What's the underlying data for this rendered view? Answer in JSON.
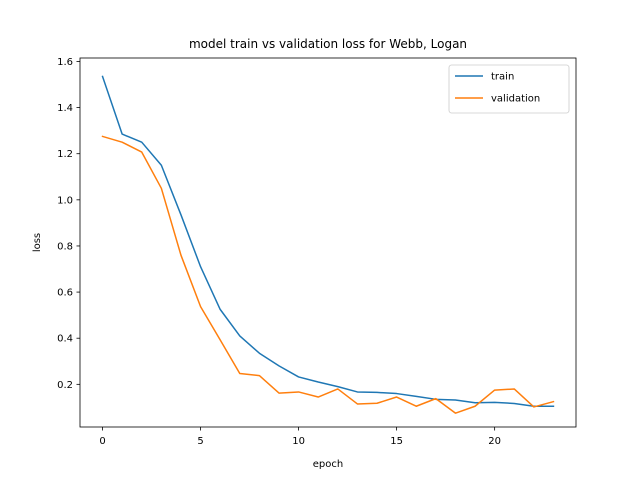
{
  "chart_data": {
    "type": "line",
    "title": "model train vs validation loss for Webb, Logan",
    "xlabel": "epoch",
    "ylabel": "loss",
    "xlim": [
      -1.15,
      24.15
    ],
    "ylim": [
      0.015,
      1.615
    ],
    "xticks": [
      0,
      5,
      10,
      15,
      20
    ],
    "yticks": [
      0.2,
      0.4,
      0.6,
      0.8,
      1.0,
      1.2,
      1.4,
      1.6
    ],
    "ytick_labels": [
      "0.2",
      "0.4",
      "0.6",
      "0.8",
      "1.0",
      "1.2",
      "1.4",
      "1.6"
    ],
    "grid": false,
    "legend_position": "top-right",
    "x": [
      0,
      1,
      2,
      3,
      4,
      5,
      6,
      7,
      8,
      9,
      10,
      11,
      12,
      13,
      14,
      15,
      16,
      17,
      18,
      19,
      20,
      21,
      22,
      23
    ],
    "series": [
      {
        "name": "train",
        "color": "#1f77b4",
        "values": [
          1.535,
          1.285,
          1.25,
          1.15,
          0.935,
          0.71,
          0.525,
          0.41,
          0.335,
          0.28,
          0.232,
          0.21,
          0.19,
          0.167,
          0.165,
          0.16,
          0.148,
          0.135,
          0.132,
          0.12,
          0.122,
          0.117,
          0.105,
          0.105
        ]
      },
      {
        "name": "validation",
        "color": "#ff7f0e",
        "values": [
          1.275,
          1.25,
          1.207,
          1.05,
          0.76,
          0.537,
          0.393,
          0.247,
          0.238,
          0.162,
          0.167,
          0.145,
          0.18,
          0.115,
          0.118,
          0.145,
          0.105,
          0.138,
          0.075,
          0.105,
          0.175,
          0.18,
          0.102,
          0.125
        ]
      }
    ]
  }
}
